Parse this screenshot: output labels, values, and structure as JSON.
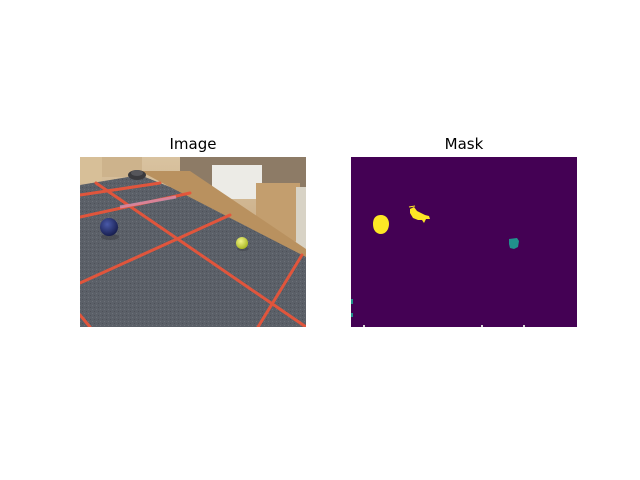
{
  "figure": {
    "panels": [
      {
        "title": "Image"
      },
      {
        "title": "Mask"
      }
    ]
  },
  "colors": {
    "mask_background": "#440154",
    "mask_class_yellow": "#fde725",
    "mask_class_teal": "#21918c",
    "carpet": "#5b6068",
    "tape": "#e8553a",
    "wall": "#c7a980"
  },
  "icons": [
    "blue-ball-icon",
    "yellow-ball-icon",
    "robot-vacuum-icon"
  ]
}
